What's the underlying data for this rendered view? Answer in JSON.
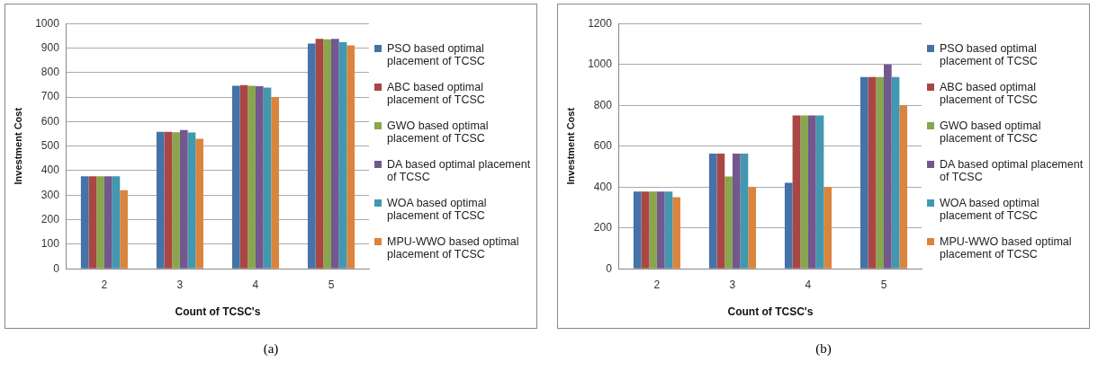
{
  "chart_data": [
    {
      "type": "bar",
      "xlabel": "Count of TCSC's",
      "ylabel": "Investment Cost",
      "categories": [
        "2",
        "3",
        "4",
        "5"
      ],
      "ylim": [
        0,
        1000
      ],
      "yticks": [
        0,
        100,
        200,
        300,
        400,
        500,
        600,
        700,
        800,
        900,
        1000
      ],
      "grid": "y",
      "legend": "right",
      "annotations": [
        "(a)"
      ],
      "series": [
        {
          "name": "PSO based optimal placement of TCSC",
          "color": "#4572a7",
          "values": [
            377,
            558,
            746,
            918
          ]
        },
        {
          "name": "ABC based optimal placement of TCSC",
          "color": "#aa4643",
          "values": [
            377,
            558,
            749,
            938
          ]
        },
        {
          "name": "GWO based optimal placement of TCSC",
          "color": "#89a54e",
          "values": [
            377,
            557,
            746,
            936
          ]
        },
        {
          "name": "DA based optimal placement of TCSC",
          "color": "#71588f",
          "values": [
            377,
            566,
            744,
            938
          ]
        },
        {
          "name": "WOA based optimal placement of TCSC",
          "color": "#4198af",
          "values": [
            377,
            556,
            739,
            924
          ]
        },
        {
          "name": "MPU-WWO based optimal placement of TCSC",
          "color": "#db843d",
          "values": [
            320,
            530,
            700,
            911
          ]
        }
      ]
    },
    {
      "type": "bar",
      "xlabel": "Count of TCSC's",
      "ylabel": "Investment Cost",
      "categories": [
        "2",
        "3",
        "4",
        "5"
      ],
      "ylim": [
        0,
        1200
      ],
      "yticks": [
        0,
        200,
        400,
        600,
        800,
        1000,
        1200
      ],
      "grid": "y",
      "legend": "right",
      "annotations": [
        "(b)"
      ],
      "series": [
        {
          "name": "PSO based optimal placement of TCSC",
          "color": "#4572a7",
          "values": [
            378,
            563,
            421,
            938
          ]
        },
        {
          "name": "ABC based optimal placement of TCSC",
          "color": "#aa4643",
          "values": [
            378,
            563,
            750,
            938
          ]
        },
        {
          "name": "GWO based optimal placement of TCSC",
          "color": "#89a54e",
          "values": [
            378,
            451,
            750,
            938
          ]
        },
        {
          "name": "DA based optimal placement of TCSC",
          "color": "#71588f",
          "values": [
            378,
            563,
            750,
            1000
          ]
        },
        {
          "name": "WOA based optimal placement of TCSC",
          "color": "#4198af",
          "values": [
            378,
            563,
            750,
            938
          ]
        },
        {
          "name": "MPU-WWO based optimal placement of TCSC",
          "color": "#db843d",
          "values": [
            350,
            400,
            400,
            800
          ]
        }
      ]
    }
  ]
}
